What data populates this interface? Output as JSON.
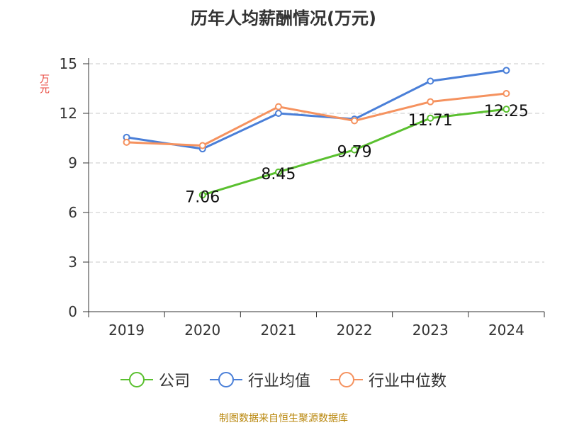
{
  "chart_data": {
    "type": "line",
    "title": "历年人均薪酬情况(万元)",
    "ylabel": "万元",
    "xlabel": "",
    "categories": [
      "2019",
      "2020",
      "2021",
      "2022",
      "2023",
      "2024"
    ],
    "ylim": [
      0,
      15
    ],
    "yticks": [
      0,
      3,
      6,
      9,
      12,
      15
    ],
    "grid": true,
    "legend_position": "bottom",
    "series": [
      {
        "name": "公司",
        "color": "#5ac02f",
        "values": [
          null,
          7.06,
          8.45,
          9.79,
          11.71,
          12.25
        ],
        "show_labels": true
      },
      {
        "name": "行业均值",
        "color": "#4a7fd8",
        "values": [
          10.55,
          9.85,
          12.0,
          11.65,
          13.95,
          14.6
        ],
        "show_labels": false
      },
      {
        "name": "行业中位数",
        "color": "#f5925f",
        "values": [
          10.25,
          10.05,
          12.4,
          11.55,
          12.7,
          13.2
        ],
        "show_labels": false
      }
    ]
  },
  "footer": "制图数据来自恒生聚源数据库"
}
